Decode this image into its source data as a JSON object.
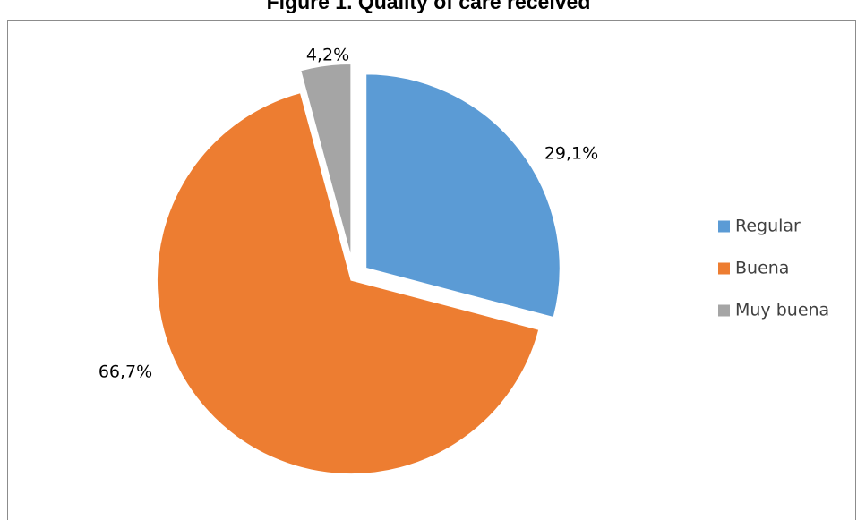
{
  "chart_data": {
    "type": "pie",
    "title": "Figure 1. Quality of care received",
    "categories": [
      "Regular",
      "Buena",
      "Muy buena"
    ],
    "values": [
      29.1,
      66.7,
      4.2
    ],
    "data_labels": [
      "29,1%",
      "66,7%",
      "4,2%"
    ],
    "colors": [
      "#5b9bd5",
      "#ed7d31",
      "#a5a5a5"
    ],
    "exploded": true,
    "start_angle": "12 o'clock",
    "direction": "clockwise",
    "legend_position": "right"
  }
}
